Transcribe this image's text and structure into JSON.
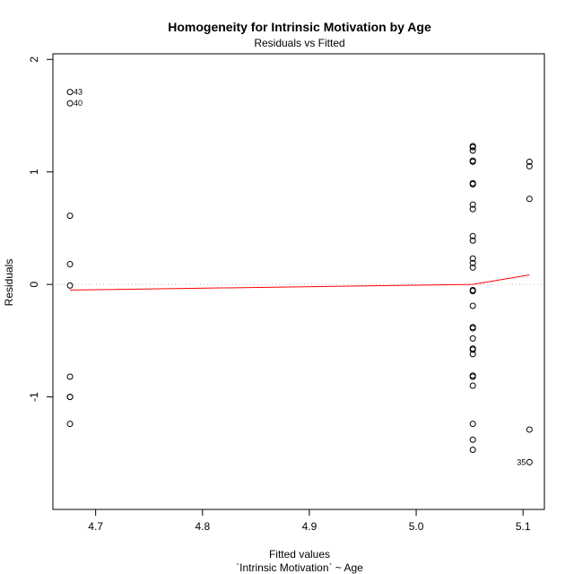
{
  "chart_data": {
    "type": "scatter",
    "title": "Homogeneity for Intrinsic Motivation by Age",
    "subtitle": "Residuals vs Fitted",
    "xlabel": "Fitted values",
    "xlabel_sub": "`Intrinsic Motivation` ~ Age",
    "ylabel": "Residuals",
    "xlim": [
      4.66,
      5.12
    ],
    "ylim": [
      -2.0,
      2.05
    ],
    "x_ticks": [
      4.7,
      4.8,
      4.9,
      5.0,
      5.1
    ],
    "x_tick_labels": [
      "4.7",
      "4.8",
      "4.9",
      "5.0",
      "5.1"
    ],
    "y_ticks": [
      -1,
      0,
      1,
      2
    ],
    "y_tick_labels": [
      "-1",
      "0",
      "1",
      "2"
    ],
    "reference_line_y": 0,
    "colors": {
      "points": "#000000",
      "smooth": "#ff0000",
      "reference": "#bdbdbd"
    },
    "points": [
      {
        "x": 4.676,
        "y": 1.71
      },
      {
        "x": 4.676,
        "y": 1.61
      },
      {
        "x": 4.676,
        "y": 0.61
      },
      {
        "x": 4.676,
        "y": 0.18
      },
      {
        "x": 4.676,
        "y": -0.01
      },
      {
        "x": 4.676,
        "y": -0.82
      },
      {
        "x": 4.676,
        "y": -1.0
      },
      {
        "x": 4.676,
        "y": -1.0
      },
      {
        "x": 4.676,
        "y": -1.24
      },
      {
        "x": 5.053,
        "y": 1.23
      },
      {
        "x": 5.053,
        "y": 1.22
      },
      {
        "x": 5.053,
        "y": 1.19
      },
      {
        "x": 5.053,
        "y": 1.1
      },
      {
        "x": 5.053,
        "y": 1.09
      },
      {
        "x": 5.053,
        "y": 0.9
      },
      {
        "x": 5.053,
        "y": 0.89
      },
      {
        "x": 5.053,
        "y": 0.71
      },
      {
        "x": 5.053,
        "y": 0.67
      },
      {
        "x": 5.053,
        "y": 0.43
      },
      {
        "x": 5.053,
        "y": 0.39
      },
      {
        "x": 5.053,
        "y": 0.23
      },
      {
        "x": 5.053,
        "y": 0.19
      },
      {
        "x": 5.053,
        "y": 0.15
      },
      {
        "x": 5.053,
        "y": -0.05
      },
      {
        "x": 5.053,
        "y": -0.06
      },
      {
        "x": 5.053,
        "y": -0.19
      },
      {
        "x": 5.053,
        "y": -0.38
      },
      {
        "x": 5.053,
        "y": -0.39
      },
      {
        "x": 5.053,
        "y": -0.48
      },
      {
        "x": 5.053,
        "y": -0.57
      },
      {
        "x": 5.053,
        "y": -0.58
      },
      {
        "x": 5.053,
        "y": -0.62
      },
      {
        "x": 5.053,
        "y": -0.81
      },
      {
        "x": 5.053,
        "y": -0.82
      },
      {
        "x": 5.053,
        "y": -0.9
      },
      {
        "x": 5.053,
        "y": -1.24
      },
      {
        "x": 5.053,
        "y": -1.38
      },
      {
        "x": 5.053,
        "y": -1.47
      },
      {
        "x": 5.106,
        "y": 1.09
      },
      {
        "x": 5.106,
        "y": 1.05
      },
      {
        "x": 5.106,
        "y": 0.76
      },
      {
        "x": 5.106,
        "y": -1.29
      },
      {
        "x": 5.106,
        "y": -1.58
      }
    ],
    "point_labels": [
      {
        "text": "43",
        "x": 4.676,
        "y": 1.71,
        "side": "right"
      },
      {
        "text": "40",
        "x": 4.676,
        "y": 1.61,
        "side": "right"
      },
      {
        "text": "35",
        "x": 5.106,
        "y": -1.58,
        "side": "left"
      }
    ],
    "smooth_line": [
      {
        "x": 4.676,
        "y": -0.05
      },
      {
        "x": 5.053,
        "y": 0.0
      },
      {
        "x": 5.106,
        "y": 0.085
      }
    ]
  }
}
